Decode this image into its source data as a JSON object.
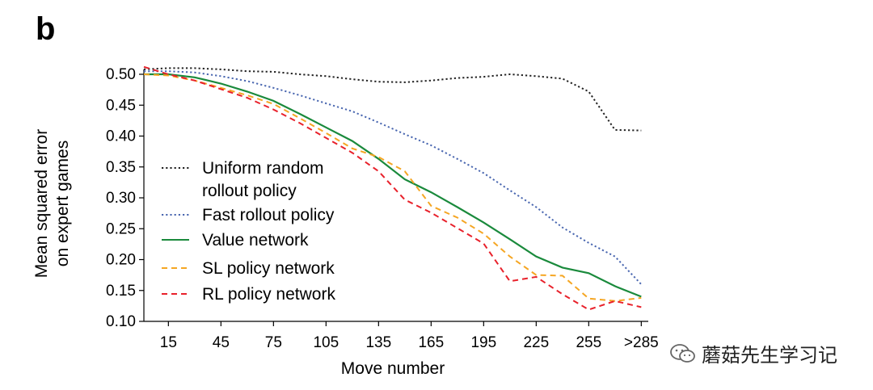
{
  "panel_label": "b",
  "watermark": {
    "text": "蘑菇先生学习记",
    "icon": "wechat-icon"
  },
  "chart_data": {
    "type": "line",
    "title": "",
    "xlabel": "Move number",
    "ylabel_lines": [
      "Mean squared error",
      "on expert games"
    ],
    "ylim": [
      0.1,
      0.5
    ],
    "yticks": [
      0.1,
      0.15,
      0.2,
      0.25,
      0.3,
      0.35,
      0.4,
      0.45,
      0.5
    ],
    "ytick_labels": [
      "0.10",
      "0.15",
      "0.20",
      "0.25",
      "0.30",
      "0.35",
      "0.40",
      "0.45",
      "0.50"
    ],
    "xlim": [
      1,
      289
    ],
    "xticks": [
      15,
      45,
      75,
      105,
      135,
      165,
      195,
      225,
      255,
      285
    ],
    "xtick_labels": [
      "15",
      "45",
      "75",
      "105",
      "135",
      "165",
      "195",
      "225",
      "255",
      ">285"
    ],
    "grid": false,
    "legend_position": "lower-left",
    "x": [
      1,
      15,
      30,
      45,
      60,
      75,
      90,
      105,
      120,
      135,
      150,
      165,
      180,
      195,
      210,
      225,
      240,
      255,
      270,
      285
    ],
    "series": [
      {
        "name": "Uniform random rollout policy",
        "legend_lines": [
          "Uniform random",
          "rollout policy"
        ],
        "color": "#222222",
        "dash": "dotted",
        "values": [
          0.508,
          0.51,
          0.51,
          0.508,
          0.505,
          0.504,
          0.5,
          0.497,
          0.492,
          0.488,
          0.487,
          0.49,
          0.494,
          0.496,
          0.5,
          0.497,
          0.493,
          0.472,
          0.41,
          0.409
        ]
      },
      {
        "name": "Fast rollout policy",
        "legend_lines": [
          "Fast rollout policy"
        ],
        "color": "#4a67b0",
        "dash": "dotted",
        "values": [
          0.505,
          0.505,
          0.503,
          0.497,
          0.489,
          0.478,
          0.466,
          0.453,
          0.44,
          0.422,
          0.403,
          0.385,
          0.363,
          0.34,
          0.312,
          0.285,
          0.252,
          0.227,
          0.205,
          0.16
        ]
      },
      {
        "name": "Value network",
        "legend_lines": [
          "Value network"
        ],
        "color": "#1a8a3c",
        "dash": "solid",
        "values": [
          0.5,
          0.5,
          0.495,
          0.485,
          0.472,
          0.457,
          0.436,
          0.414,
          0.392,
          0.363,
          0.33,
          0.309,
          0.285,
          0.26,
          0.233,
          0.205,
          0.187,
          0.178,
          0.157,
          0.14
        ]
      },
      {
        "name": "SL policy network",
        "legend_lines": [
          "SL policy network"
        ],
        "color": "#f5a623",
        "dash": "dashed",
        "values": [
          0.5,
          0.498,
          0.49,
          0.478,
          0.466,
          0.452,
          0.429,
          0.405,
          0.38,
          0.366,
          0.343,
          0.287,
          0.268,
          0.242,
          0.205,
          0.175,
          0.174,
          0.137,
          0.133,
          0.138
        ]
      },
      {
        "name": "RL policy network",
        "legend_lines": [
          "RL policy network"
        ],
        "color": "#e8212b",
        "dash": "dashed",
        "values": [
          0.512,
          0.5,
          0.49,
          0.476,
          0.462,
          0.443,
          0.421,
          0.397,
          0.373,
          0.343,
          0.297,
          0.276,
          0.251,
          0.226,
          0.165,
          0.172,
          0.144,
          0.119,
          0.133,
          0.123
        ]
      }
    ]
  }
}
